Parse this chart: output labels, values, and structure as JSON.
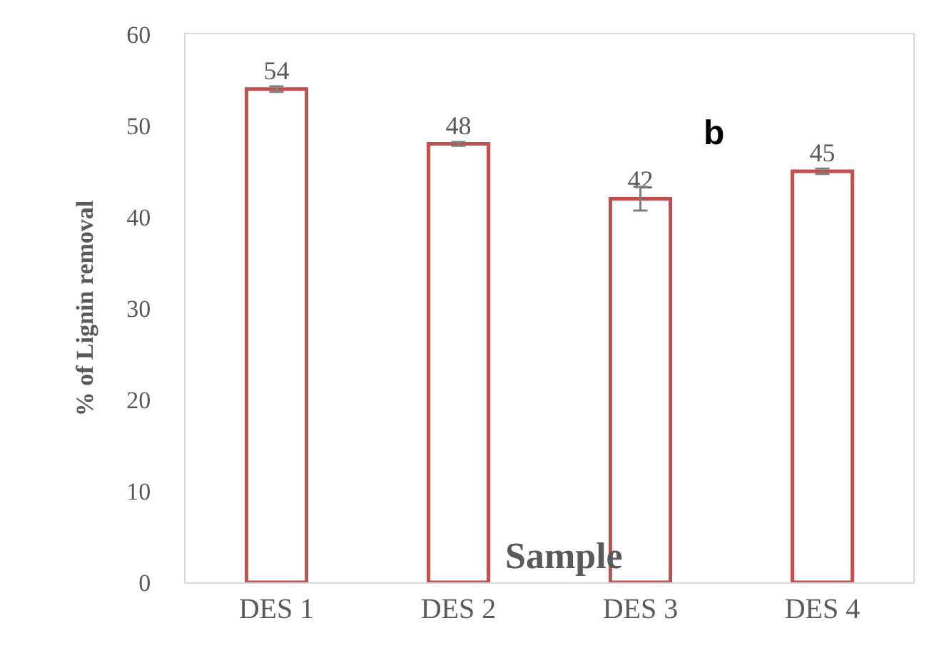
{
  "chart_data": {
    "type": "bar",
    "xlabel": "Sample",
    "ylabel": "% of Lignin removal",
    "categories": [
      "DES 1",
      "DES 2",
      "DES 3",
      "DES 4"
    ],
    "values": [
      54,
      48,
      42,
      45
    ],
    "errors": [
      0.3,
      0.2,
      1.3,
      0.3
    ],
    "color": "#c0504d",
    "ylim": [
      0,
      60
    ],
    "yticks": [
      0,
      10,
      20,
      30,
      40,
      50,
      60
    ],
    "data_labels": true,
    "annotations": [
      "b"
    ]
  }
}
